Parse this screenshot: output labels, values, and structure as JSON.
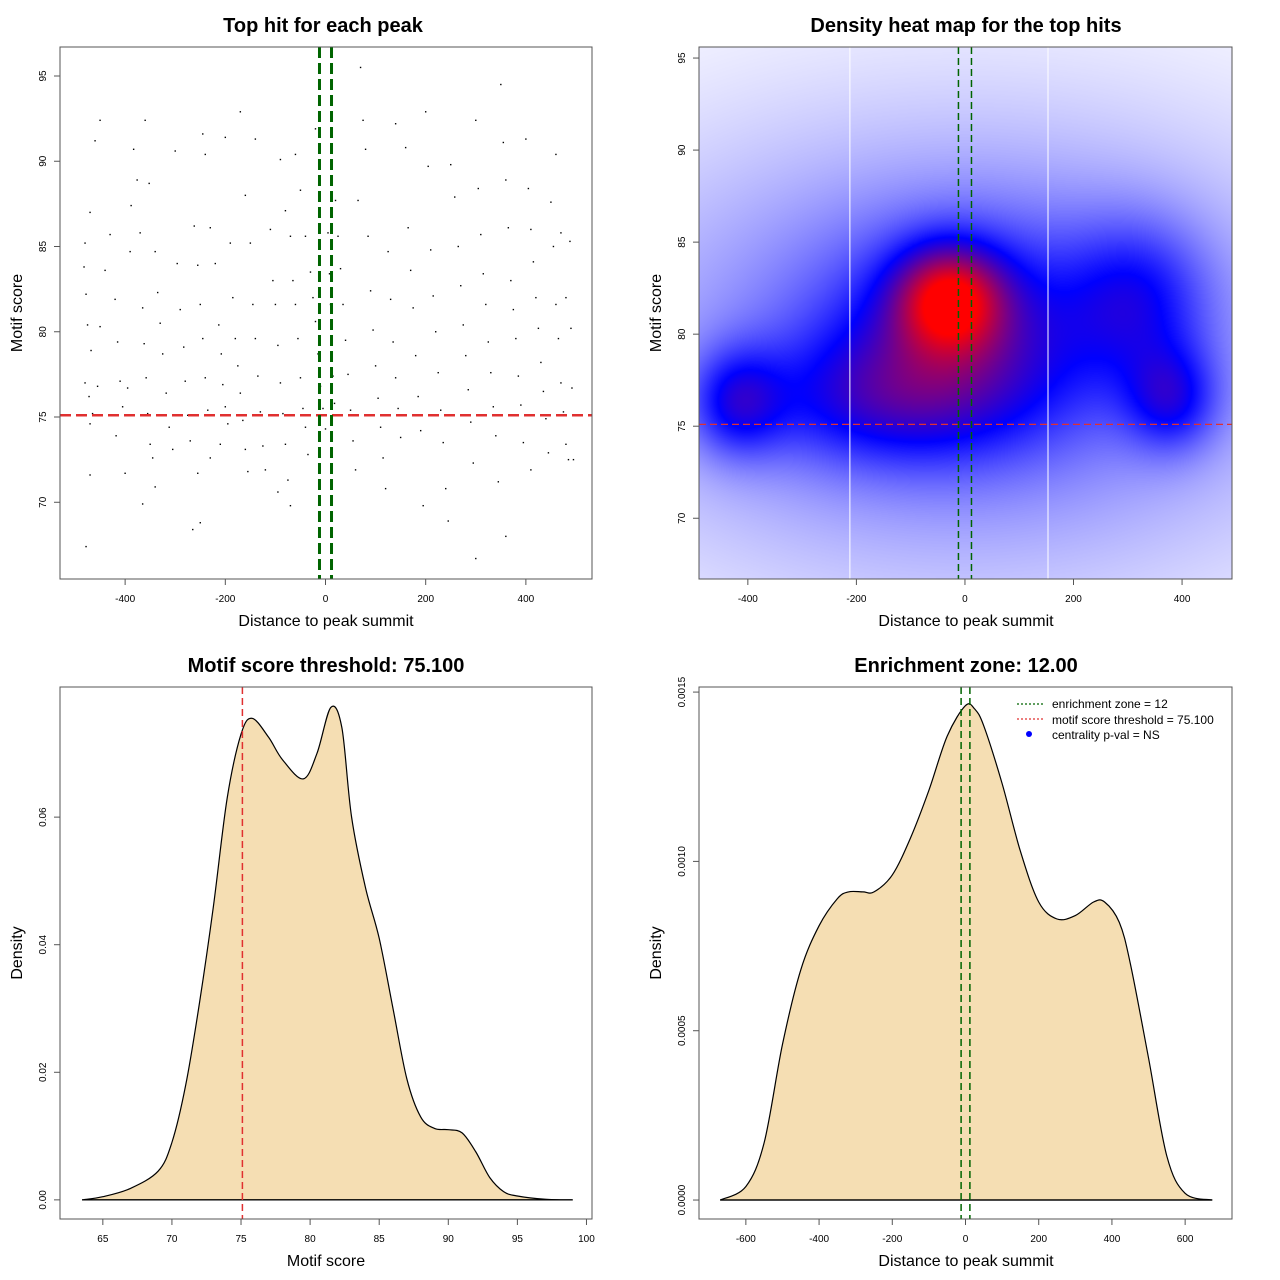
{
  "colors": {
    "fill": "#f5deb3",
    "threshold": "#e03030",
    "zone": "#006400",
    "centrality": "#0000ff",
    "heat_low": "#ffffff",
    "heat_mid": "#0000ff",
    "heat_high": "#ff0000"
  },
  "chart_data": [
    {
      "type": "scatter",
      "title": "Top hit for each peak",
      "xlabel": "Distance to peak summit",
      "ylabel": "Motif score",
      "xlim": [
        -530,
        532
      ],
      "ylim": [
        65.5,
        96.7
      ],
      "xticks": [
        -400,
        -200,
        0,
        200,
        400
      ],
      "yticks": [
        70,
        75,
        80,
        85,
        90,
        95
      ],
      "threshold": 75.1,
      "enrichment_zone": [
        -12,
        12
      ],
      "points": [
        [
          -478,
          67.4
        ],
        [
          -470,
          71.6
        ],
        [
          -460,
          91.2
        ],
        [
          -450,
          92.4
        ],
        [
          -480,
          85.2
        ],
        [
          -482,
          83.8
        ],
        [
          -478,
          82.2
        ],
        [
          -470,
          87
        ],
        [
          -475,
          80.4
        ],
        [
          -468,
          78.9
        ],
        [
          -480,
          77
        ],
        [
          -472,
          76.2
        ],
        [
          -465,
          75.2
        ],
        [
          -470,
          74.6
        ],
        [
          -455,
          76.8
        ],
        [
          -450,
          80.3
        ],
        [
          -440,
          83.6
        ],
        [
          -430,
          85.7
        ],
        [
          -420,
          81.9
        ],
        [
          -415,
          79.4
        ],
        [
          -410,
          77.1
        ],
        [
          -405,
          75.6
        ],
        [
          -418,
          73.9
        ],
        [
          -400,
          71.7
        ],
        [
          -395,
          76.7
        ],
        [
          -390,
          84.7
        ],
        [
          -388,
          87.4
        ],
        [
          -383,
          90.7
        ],
        [
          -376,
          88.9
        ],
        [
          -370,
          85.8
        ],
        [
          -365,
          81.4
        ],
        [
          -362,
          79.3
        ],
        [
          -358,
          77.3
        ],
        [
          -355,
          75.2
        ],
        [
          -350,
          73.4
        ],
        [
          -345,
          72.6
        ],
        [
          -340,
          70.9
        ],
        [
          -365,
          69.9
        ],
        [
          -360,
          92.4
        ],
        [
          -352,
          88.7
        ],
        [
          -340,
          84.7
        ],
        [
          -335,
          82.3
        ],
        [
          -330,
          80.5
        ],
        [
          -325,
          78.7
        ],
        [
          -318,
          76.4
        ],
        [
          -312,
          74.4
        ],
        [
          -305,
          73.1
        ],
        [
          -300,
          90.6
        ],
        [
          -296,
          84
        ],
        [
          -290,
          81.3
        ],
        [
          -283,
          79.1
        ],
        [
          -280,
          77.1
        ],
        [
          -275,
          75.1
        ],
        [
          -270,
          73.6
        ],
        [
          -265,
          68.4
        ],
        [
          -262,
          86.2
        ],
        [
          -255,
          83.9
        ],
        [
          -250,
          81.6
        ],
        [
          -245,
          79.6
        ],
        [
          -240,
          77.3
        ],
        [
          -235,
          75.4
        ],
        [
          -230,
          72.6
        ],
        [
          -255,
          71.7
        ],
        [
          -250,
          68.8
        ],
        [
          -245,
          91.6
        ],
        [
          -240,
          90.4
        ],
        [
          -230,
          86.1
        ],
        [
          -220,
          84
        ],
        [
          -213,
          80.4
        ],
        [
          -208,
          78.7
        ],
        [
          -205,
          76.9
        ],
        [
          -200,
          75.6
        ],
        [
          -195,
          74.6
        ],
        [
          -210,
          73.4
        ],
        [
          -200,
          91.4
        ],
        [
          -190,
          85.2
        ],
        [
          -185,
          82
        ],
        [
          -180,
          79.6
        ],
        [
          -175,
          78
        ],
        [
          -170,
          76.4
        ],
        [
          -165,
          74.8
        ],
        [
          -160,
          73.1
        ],
        [
          -155,
          71.8
        ],
        [
          -170,
          92.9
        ],
        [
          -160,
          88
        ],
        [
          -150,
          85.2
        ],
        [
          -145,
          81.6
        ],
        [
          -140,
          79.6
        ],
        [
          -135,
          77.4
        ],
        [
          -130,
          75.3
        ],
        [
          -125,
          73.3
        ],
        [
          -120,
          71.9
        ],
        [
          -140,
          91.3
        ],
        [
          -110,
          86
        ],
        [
          -105,
          83
        ],
        [
          -100,
          81.6
        ],
        [
          -95,
          79.2
        ],
        [
          -90,
          77
        ],
        [
          -85,
          75.2
        ],
        [
          -80,
          73.4
        ],
        [
          -75,
          71.3
        ],
        [
          -95,
          70.6
        ],
        [
          -70,
          69.8
        ],
        [
          -90,
          90.1
        ],
        [
          -80,
          87.1
        ],
        [
          -70,
          85.6
        ],
        [
          -65,
          83
        ],
        [
          -60,
          81.6
        ],
        [
          -55,
          79.6
        ],
        [
          -50,
          77.3
        ],
        [
          -45,
          75.5
        ],
        [
          -40,
          74.4
        ],
        [
          -35,
          72.8
        ],
        [
          -60,
          90.4
        ],
        [
          -50,
          88.3
        ],
        [
          -40,
          85.6
        ],
        [
          -30,
          83.5
        ],
        [
          -25,
          82
        ],
        [
          -20,
          80.6
        ],
        [
          -15,
          78.7
        ],
        [
          -10,
          76.8
        ],
        [
          -5,
          75.5
        ],
        [
          0,
          74.3
        ],
        [
          5,
          85.8
        ],
        [
          8,
          83.4
        ],
        [
          10,
          81.6
        ],
        [
          12,
          79.3
        ],
        [
          15,
          77.4
        ],
        [
          18,
          75.8
        ],
        [
          -20,
          91.9
        ],
        [
          20,
          87.7
        ],
        [
          25,
          85.6
        ],
        [
          30,
          83.7
        ],
        [
          35,
          81.6
        ],
        [
          40,
          79.5
        ],
        [
          45,
          77.5
        ],
        [
          50,
          75.4
        ],
        [
          55,
          73.6
        ],
        [
          60,
          71.9
        ],
        [
          65,
          87.7
        ],
        [
          70,
          95.5
        ],
        [
          75,
          92.4
        ],
        [
          80,
          90.7
        ],
        [
          85,
          85.6
        ],
        [
          90,
          82.4
        ],
        [
          95,
          80.1
        ],
        [
          100,
          78
        ],
        [
          105,
          76.1
        ],
        [
          110,
          74.4
        ],
        [
          115,
          72.6
        ],
        [
          120,
          70.8
        ],
        [
          125,
          84.7
        ],
        [
          130,
          81.9
        ],
        [
          135,
          79.4
        ],
        [
          140,
          77.3
        ],
        [
          145,
          75.5
        ],
        [
          150,
          73.8
        ],
        [
          140,
          92.2
        ],
        [
          160,
          90.8
        ],
        [
          165,
          86.1
        ],
        [
          170,
          83.6
        ],
        [
          175,
          81.4
        ],
        [
          180,
          78.6
        ],
        [
          185,
          76.2
        ],
        [
          190,
          74.2
        ],
        [
          195,
          69.8
        ],
        [
          200,
          92.9
        ],
        [
          205,
          89.7
        ],
        [
          210,
          84.8
        ],
        [
          215,
          82.1
        ],
        [
          220,
          80
        ],
        [
          225,
          77.6
        ],
        [
          230,
          75.4
        ],
        [
          235,
          73.5
        ],
        [
          240,
          70.8
        ],
        [
          245,
          68.9
        ],
        [
          250,
          89.8
        ],
        [
          258,
          87.9
        ],
        [
          265,
          85
        ],
        [
          270,
          82.7
        ],
        [
          275,
          80.4
        ],
        [
          280,
          78.6
        ],
        [
          285,
          76.6
        ],
        [
          290,
          74.7
        ],
        [
          295,
          72.3
        ],
        [
          300,
          92.4
        ],
        [
          305,
          88.4
        ],
        [
          310,
          85.7
        ],
        [
          315,
          83.4
        ],
        [
          320,
          81.6
        ],
        [
          325,
          79.4
        ],
        [
          330,
          77.6
        ],
        [
          335,
          75.6
        ],
        [
          340,
          73.9
        ],
        [
          345,
          71.2
        ],
        [
          300,
          66.7
        ],
        [
          350,
          94.5
        ],
        [
          355,
          91.1
        ],
        [
          360,
          88.9
        ],
        [
          365,
          86.1
        ],
        [
          370,
          83
        ],
        [
          375,
          81.3
        ],
        [
          380,
          79.6
        ],
        [
          385,
          77.4
        ],
        [
          390,
          75.7
        ],
        [
          395,
          73.5
        ],
        [
          360,
          68
        ],
        [
          400,
          91.3
        ],
        [
          405,
          88.4
        ],
        [
          410,
          86
        ],
        [
          415,
          84.1
        ],
        [
          420,
          82
        ],
        [
          425,
          80.2
        ],
        [
          430,
          78.2
        ],
        [
          435,
          76.5
        ],
        [
          440,
          74.9
        ],
        [
          445,
          72.9
        ],
        [
          410,
          71.9
        ],
        [
          450,
          87.6
        ],
        [
          455,
          85
        ],
        [
          460,
          81.6
        ],
        [
          465,
          79.6
        ],
        [
          470,
          77
        ],
        [
          475,
          75.3
        ],
        [
          480,
          73.4
        ],
        [
          485,
          72.5
        ],
        [
          460,
          90.4
        ],
        [
          470,
          85.8
        ],
        [
          480,
          82
        ],
        [
          488,
          85.3
        ],
        [
          490,
          80.2
        ],
        [
          492,
          76.7
        ],
        [
          495,
          72.5
        ]
      ]
    },
    {
      "type": "heatmap",
      "title": "Density heat map for the top hits",
      "xlabel": "Distance to peak summit",
      "ylabel": "Motif score",
      "xlim": [
        -490,
        492
      ],
      "ylim": [
        66.7,
        95.6
      ],
      "xticks": [
        -400,
        -200,
        0,
        200,
        400
      ],
      "yticks": [
        70,
        75,
        80,
        85,
        90,
        95
      ],
      "threshold": 75.1,
      "enrichment_zone": [
        -12,
        12
      ],
      "white_lines_x": [
        -212,
        153
      ],
      "density_peaks": [
        {
          "x": -30,
          "y": 82,
          "sx": 70,
          "sy": 2,
          "w": 0.55
        },
        {
          "x": -150,
          "y": 76.5,
          "sx": 170,
          "sy": 2.5,
          "w": 0.25
        },
        {
          "x": -420,
          "y": 76.3,
          "sx": 60,
          "sy": 2,
          "w": 0.3
        },
        {
          "x": 320,
          "y": 82,
          "sx": 90,
          "sy": 3,
          "w": 0.25
        },
        {
          "x": 380,
          "y": 76.5,
          "sx": 60,
          "sy": 2,
          "w": 0.3
        },
        {
          "x": 0,
          "y": 79,
          "sx": 500,
          "sy": 9,
          "w": 0.3
        },
        {
          "x": 0,
          "y": 80,
          "sx": 180,
          "sy": 4,
          "w": 0.3
        }
      ]
    },
    {
      "type": "area",
      "title": "Motif score threshold: 75.100",
      "xlabel": "Motif score",
      "ylabel": "Density",
      "xlim": [
        61.9,
        100.4
      ],
      "ylim": [
        -0.003,
        0.0804
      ],
      "xticks": [
        65,
        70,
        75,
        80,
        85,
        90,
        95,
        100
      ],
      "yticks": [
        0.0,
        0.02,
        0.04,
        0.06
      ],
      "ytick_labels": [
        "0.00",
        "0.02",
        "0.04",
        "0.06"
      ],
      "threshold": 75.1,
      "x": [
        63.5,
        65,
        67,
        69,
        70,
        71,
        72,
        73,
        74,
        75,
        75.8,
        77,
        78,
        79.5,
        80.5,
        81.5,
        82.3,
        83,
        84,
        85,
        86,
        87,
        88,
        89,
        90,
        91,
        92,
        93,
        94,
        95,
        97,
        99
      ],
      "y": [
        0,
        0.0005,
        0.0018,
        0.0045,
        0.009,
        0.018,
        0.031,
        0.046,
        0.063,
        0.073,
        0.0755,
        0.0725,
        0.069,
        0.066,
        0.07,
        0.0772,
        0.074,
        0.06,
        0.049,
        0.041,
        0.03,
        0.019,
        0.013,
        0.0112,
        0.011,
        0.0105,
        0.0075,
        0.0035,
        0.0013,
        0.0006,
        0.0001,
        0
      ]
    },
    {
      "type": "area",
      "title": "Enrichment zone: 12.00",
      "xlabel": "Distance to peak summit",
      "ylabel": "Density",
      "xlim": [
        -728,
        728
      ],
      "ylim": [
        -5.6e-05,
        0.001515
      ],
      "xticks": [
        -600,
        -400,
        -200,
        0,
        200,
        400,
        600
      ],
      "yticks": [
        0,
        0.0005,
        0.001,
        0.0015
      ],
      "ytick_labels": [
        "0.0000",
        "0.0005",
        "0.0010",
        "0.0015"
      ],
      "enrichment_zone": [
        -12,
        12
      ],
      "x": [
        -670,
        -600,
        -550,
        -500,
        -450,
        -400,
        -350,
        -320,
        -280,
        -250,
        -200,
        -150,
        -100,
        -50,
        0,
        25,
        50,
        100,
        150,
        200,
        250,
        300,
        350,
        380,
        420,
        450,
        500,
        550,
        600,
        674
      ],
      "y": [
        0,
        4e-05,
        0.00017,
        0.00046,
        0.00068,
        0.00081,
        0.00089,
        0.00091,
        0.00091,
        0.00091,
        0.00096,
        0.00107,
        0.00121,
        0.00137,
        0.00146,
        0.00145,
        0.0014,
        0.00123,
        0.00103,
        0.00088,
        0.00083,
        0.00084,
        0.00088,
        0.00088,
        0.00082,
        0.0007,
        0.00042,
        0.00013,
        2e-05,
        0
      ],
      "legend": {
        "position": "top-right",
        "entries": [
          "enrichment zone = 12",
          "motif score threshold = 75.100",
          "centrality p-val = NS"
        ]
      }
    }
  ]
}
